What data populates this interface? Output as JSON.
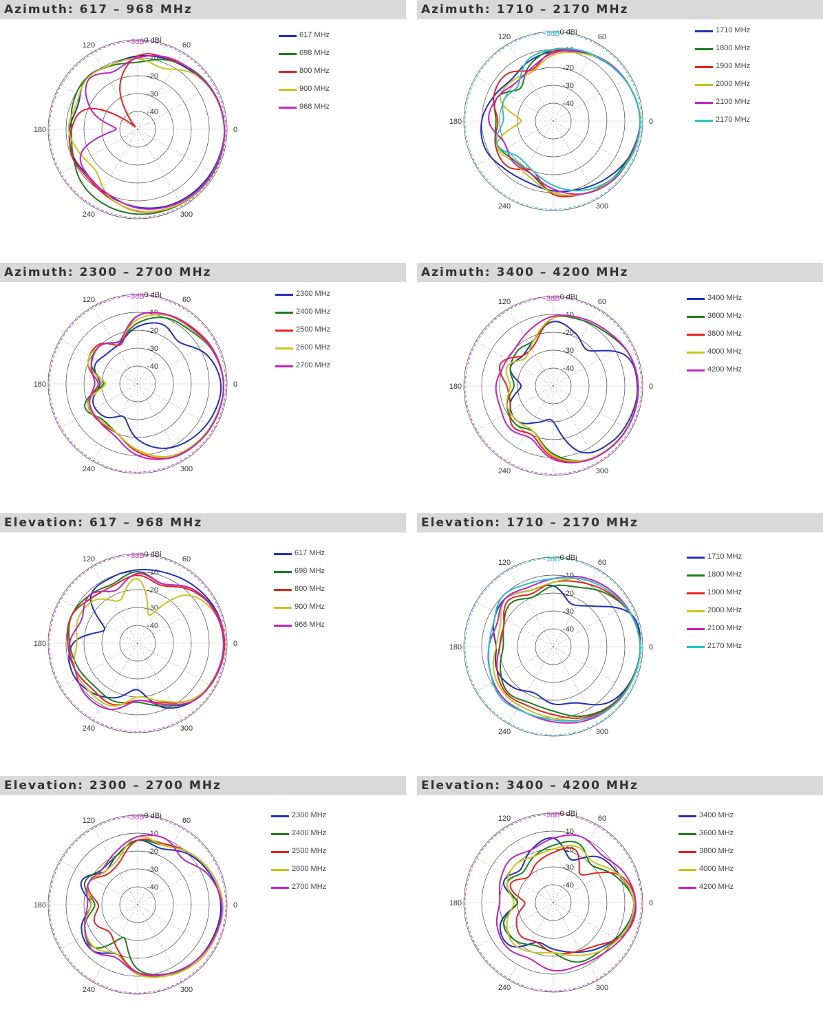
{
  "colors": {
    "series": [
      "#1f2fbf",
      "#1a7f1a",
      "#e8231f",
      "#c8c418",
      "#c81fc8",
      "#22c4c8"
    ],
    "grid": "#444444",
    "header_bg": "#d9d9d9",
    "ref_circle_magenta": "#d040d0",
    "ref_circle_cyan": "#30c8c8"
  },
  "chart_data": [
    {
      "type": "polar-line",
      "title": "Azimuth: 617 – 968 MHz",
      "radial_axis": {
        "range_dBi": [
          -50,
          0
        ],
        "tick_labels": [
          "0 dBi",
          "-10",
          "-20",
          "-30",
          "-40"
        ],
        "reference_label": "-3dB",
        "reference_value": -3
      },
      "angle_labels": [
        "0",
        "60",
        "120",
        "180",
        "240",
        "300"
      ],
      "series": [
        {
          "name": "617 MHz",
          "values": [
            -1.5,
            -2.5,
            -5.5,
            -7.5,
            -9,
            -11,
            -9.5,
            -14,
            -12,
            -11,
            -12,
            -9.5,
            -6.5,
            -4,
            -2.8,
            -2
          ]
        },
        {
          "name": "698 MHz",
          "values": [
            -1.5,
            -2.5,
            -4.5,
            -8,
            -12.5,
            -11.5,
            -9.5,
            -11,
            -13,
            -11,
            -6.5,
            -4,
            -2.6,
            -2,
            -1.5,
            -1.2
          ]
        },
        {
          "name": "800 MHz",
          "values": [
            -1.5,
            -2.8,
            -5,
            -7,
            -9,
            -24,
            -48,
            -20,
            -13,
            -10.5,
            -11,
            -8.5,
            -4.2,
            -2.5,
            -1.8,
            -1.6
          ]
        },
        {
          "name": "900 MHz",
          "values": [
            -1.5,
            -2.8,
            -6,
            -13,
            -10.5,
            -11,
            -10,
            -13,
            -11.5,
            -15,
            -17,
            -9,
            -4.5,
            -2.5,
            -1.8,
            -1.5
          ]
        },
        {
          "name": "968 MHz",
          "values": [
            -1.5,
            -2.6,
            -5,
            -6.5,
            -10,
            -15,
            -11,
            -22,
            -38,
            -16,
            -12,
            -10,
            -6,
            -3.5,
            -2.1,
            -1.6
          ]
        }
      ]
    },
    {
      "type": "polar-line",
      "title": "Azimuth: 1710 – 2170 MHz",
      "radial_axis": {
        "range_dBi": [
          -50,
          0
        ],
        "tick_labels": [
          "0 dBi",
          "-10",
          "-20",
          "-30",
          "-40"
        ],
        "reference_label": "-3dB",
        "reference_value": -3
      },
      "angle_labels": [
        "0",
        "60",
        "120",
        "180",
        "240",
        "300"
      ],
      "series": [
        {
          "name": "1710 MHz",
          "values": [
            -1.5,
            -3,
            -5.5,
            -8.5,
            -11,
            -14,
            -17,
            -14,
            -10,
            -9,
            -12,
            -13,
            -11,
            -9,
            -6,
            -2.8
          ]
        },
        {
          "name": "1800 MHz",
          "values": [
            -1.5,
            -3,
            -5,
            -8,
            -10,
            -16,
            -24,
            -16,
            -18,
            -16,
            -19,
            -18,
            -10,
            -6,
            -4,
            -3
          ]
        },
        {
          "name": "1900 MHz",
          "values": [
            -1.5,
            -3,
            -5,
            -8,
            -11,
            -19,
            -13,
            -14,
            -19,
            -15,
            -14,
            -20,
            -9,
            -6,
            -3.5,
            -2.5
          ]
        },
        {
          "name": "2000 MHz",
          "values": [
            -1.5,
            -3,
            -5,
            -9,
            -13,
            -20,
            -18,
            -18,
            -32,
            -16,
            -18,
            -16,
            -10,
            -6,
            -3.5,
            -2.5
          ]
        },
        {
          "name": "2100 MHz",
          "values": [
            -1.5,
            -3,
            -5,
            -8,
            -12,
            -18,
            -20,
            -16,
            -14,
            -20,
            -18,
            -18,
            -12,
            -6,
            -3,
            -2.5
          ]
        },
        {
          "name": "2170 MHz",
          "values": [
            -1.5,
            -3,
            -5.5,
            -7.5,
            -10,
            -13,
            -22,
            -20,
            -22,
            -16,
            -22,
            -20,
            -14,
            -8,
            -4,
            -2
          ]
        }
      ]
    },
    {
      "type": "polar-line",
      "title": "Azimuth: 2300 – 2700 MHz",
      "radial_axis": {
        "range_dBi": [
          -50,
          0
        ],
        "tick_labels": [
          "0 dBi",
          "-10",
          "-20",
          "-30",
          "-40"
        ],
        "reference_label": "-3dB",
        "reference_value": -3
      },
      "angle_labels": [
        "0",
        "60",
        "120",
        "180",
        "240",
        "300"
      ],
      "series": [
        {
          "name": "2300 MHz",
          "values": [
            -3.5,
            -8,
            -17,
            -14,
            -18,
            -25,
            -26,
            -24,
            -29,
            -23,
            -24,
            -30,
            -19,
            -11,
            -7,
            -4.5
          ]
        },
        {
          "name": "2400 MHz",
          "values": [
            -2,
            -4,
            -8,
            -10,
            -16,
            -24,
            -20,
            -22,
            -31,
            -18,
            -22,
            -20,
            -13,
            -6,
            -3.5,
            -2.5
          ]
        },
        {
          "name": "2500 MHz",
          "values": [
            -2,
            -3.5,
            -6,
            -8,
            -12,
            -26,
            -19,
            -20,
            -28,
            -20,
            -20,
            -20,
            -12,
            -5,
            -3,
            -2.2
          ]
        },
        {
          "name": "2600 MHz",
          "values": [
            -2,
            -4,
            -7,
            -8.5,
            -14,
            -24,
            -20,
            -20,
            -32,
            -20,
            -21,
            -20,
            -13,
            -6,
            -3.5,
            -2.5
          ]
        },
        {
          "name": "2700 MHz",
          "values": [
            -2,
            -4,
            -6.5,
            -8,
            -12,
            -24,
            -20,
            -22,
            -26,
            -21,
            -20,
            -18,
            -10,
            -5,
            -3,
            -2.2
          ]
        }
      ]
    },
    {
      "type": "polar-line",
      "title": "Azimuth: 3400 – 4200 MHz",
      "radial_axis": {
        "range_dBi": [
          -50,
          0
        ],
        "tick_labels": [
          "0 dBi",
          "-10",
          "-20",
          "-30",
          "-40"
        ],
        "reference_label": "-3dB",
        "reference_value": -3
      },
      "angle_labels": [
        "0",
        "60",
        "120",
        "180",
        "240",
        "300"
      ],
      "series": [
        {
          "name": "3400 MHz",
          "values": [
            -3,
            -6,
            -22,
            -18,
            -14,
            -22,
            -26,
            -24,
            -32,
            -24,
            -22,
            -28,
            -30,
            -10,
            -5,
            -3.5
          ]
        },
        {
          "name": "3600 MHz",
          "values": [
            -2.5,
            -4,
            -8,
            -10,
            -12,
            -22,
            -22,
            -24,
            -28,
            -22,
            -20,
            -22,
            -12,
            -5,
            -3,
            -2.5
          ]
        },
        {
          "name": "3800 MHz",
          "values": [
            -2.5,
            -4,
            -7,
            -9,
            -12,
            -24,
            -26,
            -18,
            -24,
            -24,
            -18,
            -20,
            -10,
            -5,
            -3,
            -2.5
          ]
        },
        {
          "name": "4000 MHz",
          "values": [
            -2.5,
            -4,
            -7,
            -9,
            -12,
            -22,
            -28,
            -22,
            -26,
            -22,
            -22,
            -22,
            -11,
            -5,
            -3,
            -2.5
          ]
        },
        {
          "name": "4200 MHz",
          "values": [
            -2.5,
            -4,
            -7,
            -9,
            -11,
            -16,
            -20,
            -20,
            -18,
            -18,
            -16,
            -18,
            -9,
            -4.5,
            -2.8,
            -2.3
          ]
        }
      ]
    },
    {
      "type": "polar-line",
      "title": "Elevation: 617 – 968 MHz",
      "radial_axis": {
        "range_dBi": [
          -50,
          0
        ],
        "tick_labels": [
          "0 dBi",
          "-10",
          "-20",
          "-30",
          "-40"
        ],
        "reference_label": "-3dB",
        "reference_value": -3
      },
      "angle_labels": [
        "0",
        "60",
        "120",
        "180",
        "240",
        "300"
      ],
      "series": [
        {
          "name": "617 MHz",
          "values": [
            -1.5,
            -2.5,
            -5,
            -7.5,
            -9,
            -10.5,
            -13,
            -30,
            -14,
            -10,
            -12,
            -17,
            -24,
            -11,
            -5,
            -2.5
          ]
        },
        {
          "name": "698 MHz",
          "values": [
            -1.5,
            -3,
            -7,
            -14,
            -10,
            -14,
            -12,
            -10,
            -12,
            -14,
            -16,
            -15,
            -17,
            -12,
            -5,
            -2.5
          ]
        },
        {
          "name": "800 MHz",
          "values": [
            -1.5,
            -3,
            -8,
            -15,
            -12,
            -15,
            -14,
            -10,
            -11,
            -12,
            -14,
            -13,
            -18,
            -14,
            -6,
            -2.5
          ]
        },
        {
          "name": "900 MHz",
          "values": [
            -2,
            -4,
            -12,
            -33,
            -14,
            -24,
            -16,
            -14,
            -16,
            -12,
            -12,
            -12,
            -20,
            -15,
            -6,
            -3
          ]
        },
        {
          "name": "968 MHz",
          "values": [
            -2,
            -3.5,
            -7,
            -14,
            -11,
            -18,
            -12,
            -16,
            -12,
            -12,
            -9,
            -10,
            -18,
            -13,
            -5,
            -2.8
          ]
        }
      ]
    },
    {
      "type": "polar-line",
      "title": "Elevation: 1710 – 2170 MHz",
      "radial_axis": {
        "range_dBi": [
          -50,
          0
        ],
        "tick_labels": [
          "0 dBi",
          "-10",
          "-20",
          "-30",
          "-40"
        ],
        "reference_label": "-3dB",
        "reference_value": -3
      },
      "angle_labels": [
        "0",
        "60",
        "120",
        "180",
        "240",
        "300"
      ],
      "series": [
        {
          "name": "1710 MHz",
          "values": [
            -1.5,
            -2.8,
            -18,
            -24,
            -16,
            -16,
            -12,
            -14,
            -18,
            -16,
            -18,
            -22,
            -18,
            -16,
            -6,
            -2.5
          ]
        },
        {
          "name": "1800 MHz",
          "values": [
            -1.5,
            -3,
            -8,
            -14,
            -16,
            -20,
            -16,
            -20,
            -22,
            -18,
            -14,
            -16,
            -14,
            -8,
            -4,
            -2.5
          ]
        },
        {
          "name": "1900 MHz",
          "values": [
            -1.5,
            -3,
            -7,
            -11,
            -14,
            -18,
            -14,
            -20,
            -20,
            -16,
            -13,
            -14,
            -12,
            -7,
            -3.5,
            -2.2
          ]
        },
        {
          "name": "2000 MHz",
          "values": [
            -1.5,
            -3,
            -6,
            -9,
            -14,
            -16,
            -12,
            -18,
            -18,
            -14,
            -12,
            -12,
            -10,
            -6,
            -3,
            -2
          ]
        },
        {
          "name": "2100 MHz",
          "values": [
            -1.5,
            -2.8,
            -5,
            -8,
            -12,
            -14,
            -12,
            -16,
            -14,
            -12,
            -10,
            -10,
            -8,
            -5,
            -3,
            -2
          ]
        },
        {
          "name": "2170 MHz",
          "values": [
            -1.5,
            -3,
            -6,
            -9,
            -12,
            -12,
            -10,
            -14,
            -14,
            -12,
            -9,
            -10,
            -9,
            -6,
            -3,
            -2
          ]
        }
      ]
    },
    {
      "type": "polar-line",
      "title": "Elevation: 2300 – 2700 MHz",
      "radial_axis": {
        "range_dBi": [
          -50,
          0
        ],
        "tick_labels": [
          "0 dBi",
          "-10",
          "-20",
          "-30",
          "-40"
        ],
        "reference_label": "-3dB",
        "reference_value": -3
      },
      "angle_labels": [
        "0",
        "60",
        "120",
        "180",
        "240",
        "300"
      ],
      "series": [
        {
          "name": "2300 MHz",
          "values": [
            -3.5,
            -6,
            -10,
            -16,
            -14,
            -20,
            -24,
            -16,
            -24,
            -16,
            -14,
            -20,
            -12,
            -8,
            -5,
            -4
          ]
        },
        {
          "name": "2400 MHz",
          "values": [
            -2.5,
            -5,
            -9,
            -14,
            -14,
            -20,
            -22,
            -18,
            -26,
            -18,
            -16,
            -30,
            -14,
            -8,
            -4,
            -3
          ]
        },
        {
          "name": "2500 MHz",
          "values": [
            -2.5,
            -5,
            -9,
            -13,
            -14,
            -24,
            -26,
            -20,
            -28,
            -24,
            -28,
            -22,
            -12,
            -7,
            -4,
            -3
          ]
        },
        {
          "name": "2600 MHz",
          "values": [
            -2.5,
            -5,
            -9,
            -14,
            -12,
            -22,
            -24,
            -20,
            -24,
            -18,
            -16,
            -20,
            -11,
            -7,
            -4,
            -3
          ]
        },
        {
          "name": "2700 MHz",
          "values": [
            -3,
            -7,
            -14,
            -10,
            -12,
            -18,
            -22,
            -20,
            -22,
            -18,
            -14,
            -18,
            -12,
            -8,
            -5,
            -3.5
          ]
        }
      ]
    },
    {
      "type": "polar-line",
      "title": "Elevation: 3400 – 4200 MHz",
      "radial_axis": {
        "range_dBi": [
          -50,
          0
        ],
        "tick_labels": [
          "0 dBi",
          "-10",
          "-20",
          "-30",
          "-40"
        ],
        "reference_label": "-3dB",
        "reference_value": -3
      },
      "angle_labels": [
        "0",
        "60",
        "120",
        "180",
        "240",
        "300"
      ],
      "series": [
        {
          "name": "3400 MHz",
          "values": [
            -5,
            -10,
            -14,
            -24,
            -14,
            -18,
            -24,
            -20,
            -30,
            -18,
            -16,
            -26,
            -24,
            -20,
            -14,
            -8
          ]
        },
        {
          "name": "3600 MHz",
          "values": [
            -5,
            -12,
            -20,
            -14,
            -18,
            -22,
            -26,
            -22,
            -30,
            -20,
            -20,
            -24,
            -22,
            -14,
            -12,
            -8
          ]
        },
        {
          "name": "3800 MHz",
          "values": [
            -4,
            -10,
            -28,
            -18,
            -22,
            -26,
            -30,
            -24,
            -34,
            -28,
            -24,
            -26,
            -22,
            -20,
            -16,
            -6
          ]
        },
        {
          "name": "4000 MHz",
          "values": [
            -5,
            -10,
            -18,
            -16,
            -20,
            -22,
            -20,
            -22,
            -28,
            -22,
            -18,
            -20,
            -22,
            -18,
            -12,
            -7
          ]
        },
        {
          "name": "4200 MHz",
          "values": [
            -4,
            -7,
            -12,
            -10,
            -14,
            -18,
            -16,
            -18,
            -20,
            -16,
            -14,
            -16,
            -12,
            -12,
            -10,
            -6
          ]
        }
      ]
    }
  ]
}
